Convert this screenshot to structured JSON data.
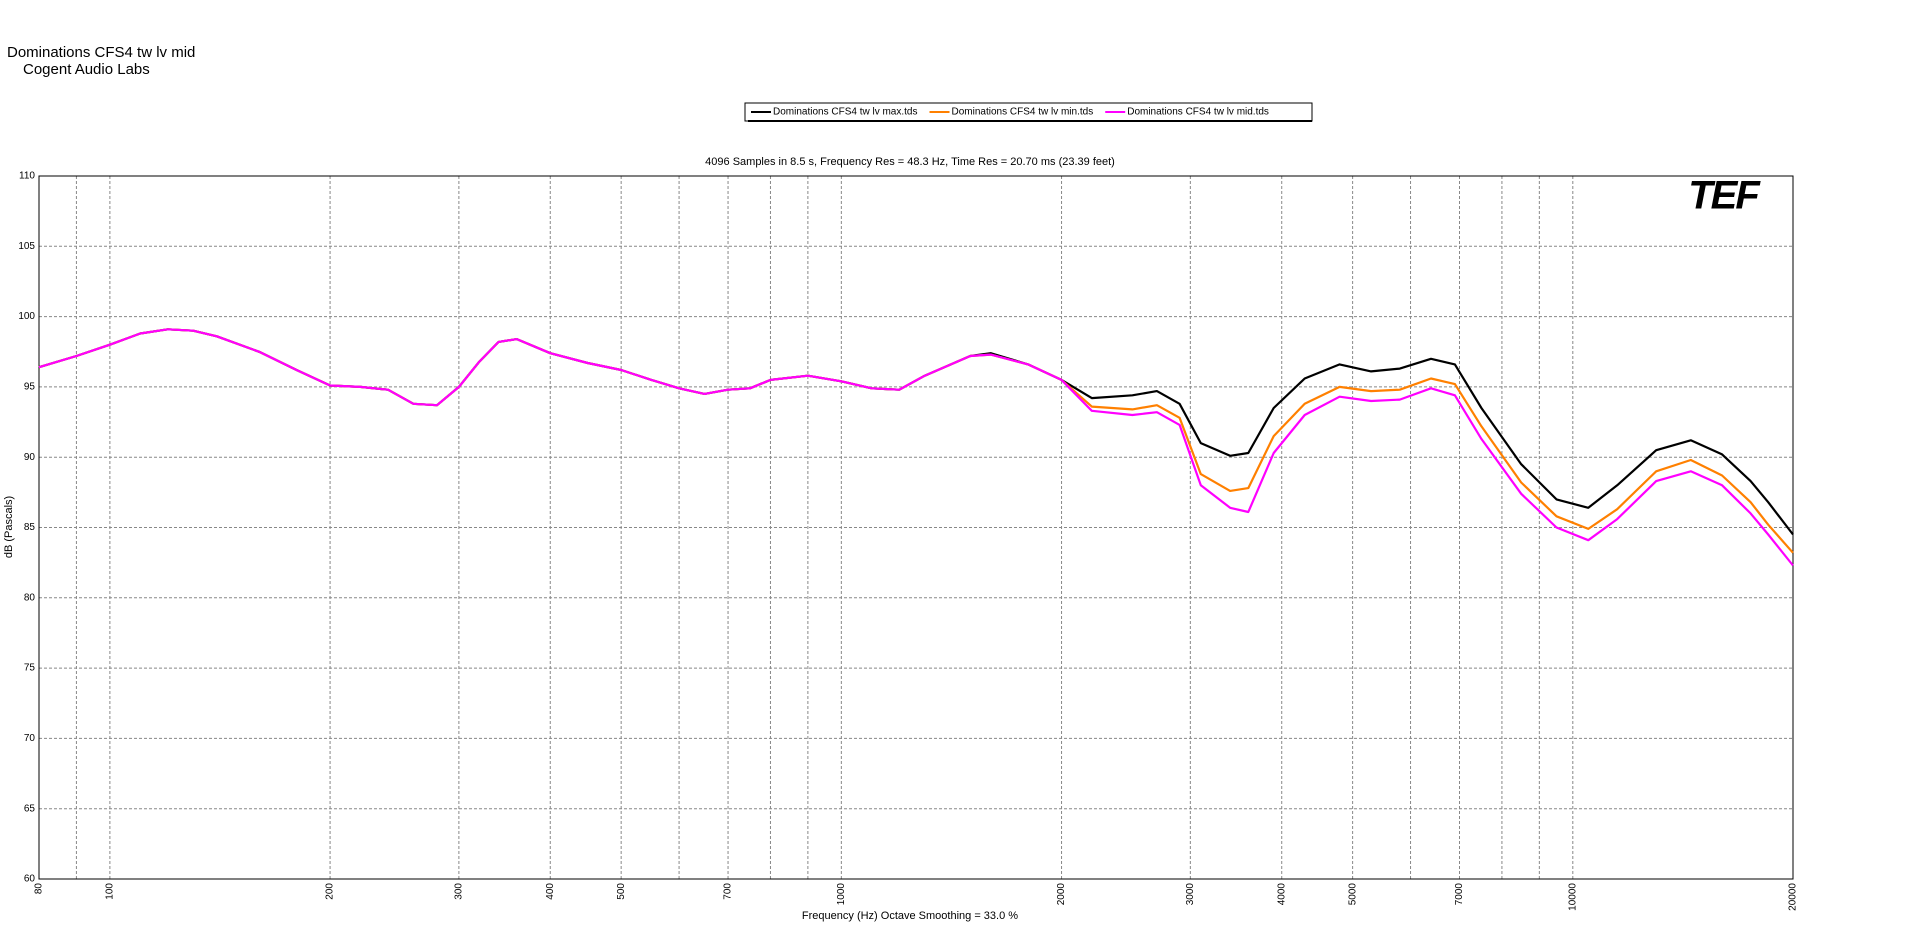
{
  "title": "Dominations CFS4 tw lv mid",
  "company": "Cogent Audio Labs",
  "chart_data": {
    "type": "line",
    "subtitle": "4096 Samples in 8.5 s, Frequency Res = 48.3 Hz, Time Res = 20.70 ms (23.39 feet)",
    "x_label": "Frequency (Hz) Octave Smoothing = 33.0 %",
    "y_label": "dB (Pascals)",
    "logo": "TEF",
    "log_x": true,
    "grid": true,
    "xlim": [
      80,
      20000
    ],
    "xticks": [
      80,
      100,
      200,
      300,
      400,
      500,
      700,
      1000,
      2000,
      3000,
      4000,
      5000,
      7000,
      10000,
      20000
    ],
    "xminor_grid": [
      90,
      600,
      800,
      900,
      6000,
      8000,
      9000
    ],
    "ylim": [
      60,
      110
    ],
    "yticks": [
      60,
      65,
      70,
      75,
      80,
      85,
      90,
      95,
      100,
      105,
      110
    ],
    "x": [
      80,
      90,
      100,
      110,
      120,
      130,
      140,
      160,
      180,
      200,
      220,
      240,
      260,
      280,
      300,
      320,
      340,
      360,
      400,
      450,
      500,
      550,
      600,
      650,
      700,
      750,
      800,
      900,
      1000,
      1100,
      1200,
      1300,
      1500,
      1600,
      1800,
      2000,
      2200,
      2500,
      2700,
      2900,
      3100,
      3400,
      3600,
      3900,
      4300,
      4800,
      5300,
      5800,
      6400,
      6900,
      7500,
      8500,
      9500,
      10500,
      11500,
      13000,
      14500,
      16000,
      17500,
      18500,
      20000
    ],
    "series": [
      {
        "name": "Dominations CFS4  tw lv max.tds",
        "color": "#000000",
        "values": [
          96.4,
          97.2,
          98.0,
          98.8,
          99.1,
          99.0,
          98.6,
          97.5,
          96.2,
          95.1,
          95.0,
          94.8,
          93.8,
          93.7,
          95.0,
          96.8,
          98.2,
          98.4,
          97.4,
          96.7,
          96.2,
          95.5,
          94.9,
          94.5,
          94.8,
          94.9,
          95.5,
          95.8,
          95.4,
          94.9,
          94.8,
          95.8,
          97.2,
          97.4,
          96.6,
          95.5,
          94.2,
          94.4,
          94.7,
          93.8,
          91.0,
          90.1,
          90.3,
          93.5,
          95.6,
          96.6,
          96.1,
          96.3,
          97.0,
          96.6,
          93.5,
          89.5,
          87.0,
          86.4,
          88.0,
          90.5,
          91.2,
          90.2,
          88.3,
          86.8,
          84.5
        ]
      },
      {
        "name": "Dominations CFS4 tw lv min.tds",
        "color": "#ff8000",
        "values": [
          96.4,
          97.2,
          98.0,
          98.8,
          99.1,
          99.0,
          98.6,
          97.5,
          96.2,
          95.1,
          95.0,
          94.8,
          93.8,
          93.7,
          95.0,
          96.8,
          98.2,
          98.4,
          97.4,
          96.7,
          96.2,
          95.5,
          94.9,
          94.5,
          94.8,
          94.9,
          95.5,
          95.8,
          95.4,
          94.9,
          94.8,
          95.8,
          97.2,
          97.3,
          96.6,
          95.5,
          93.6,
          93.4,
          93.7,
          92.8,
          88.8,
          87.6,
          87.8,
          91.5,
          93.8,
          95.0,
          94.7,
          94.8,
          95.6,
          95.2,
          92.2,
          88.2,
          85.8,
          84.9,
          86.3,
          89.0,
          89.8,
          88.7,
          86.8,
          85.2,
          83.2
        ]
      },
      {
        "name": "Dominations CFS4 tw lv mid.tds",
        "color": "#ff00ff",
        "values": [
          96.4,
          97.2,
          98.0,
          98.8,
          99.1,
          99.0,
          98.6,
          97.5,
          96.2,
          95.1,
          95.0,
          94.8,
          93.8,
          93.7,
          95.0,
          96.8,
          98.2,
          98.4,
          97.4,
          96.7,
          96.2,
          95.5,
          94.9,
          94.5,
          94.8,
          94.9,
          95.5,
          95.8,
          95.4,
          94.9,
          94.8,
          95.8,
          97.2,
          97.3,
          96.6,
          95.5,
          93.3,
          93.0,
          93.2,
          92.3,
          88.0,
          86.4,
          86.1,
          90.3,
          93.0,
          94.3,
          94.0,
          94.1,
          94.9,
          94.4,
          91.3,
          87.4,
          85.0,
          84.1,
          85.6,
          88.3,
          89.0,
          88.0,
          86.0,
          84.5,
          82.3
        ]
      }
    ]
  }
}
